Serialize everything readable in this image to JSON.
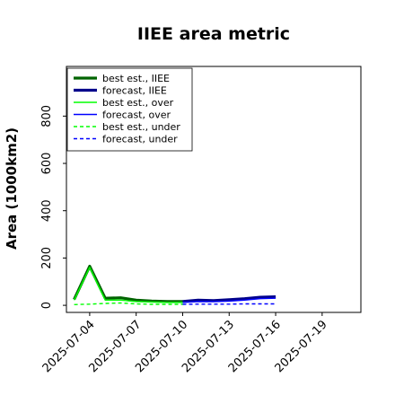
{
  "chart_data": {
    "type": "line",
    "title": "IIEE area metric",
    "xlabel": "",
    "ylabel": "Area (1000km2)",
    "xlim": [
      "2025-07-02T12:00",
      "2025-07-21T12:00"
    ],
    "ylim": [
      -30,
      1010
    ],
    "yticks": [
      0,
      200,
      400,
      600,
      800
    ],
    "xticks": [
      "2025-07-04",
      "2025-07-07",
      "2025-07-10",
      "2025-07-13",
      "2025-07-16",
      "2025-07-19"
    ],
    "xtick_colors": [
      "#000000",
      "#000000",
      "#228b22",
      "#000000",
      "#000000",
      "#000000"
    ],
    "grid": false,
    "legend_position": "top-left",
    "series": [
      {
        "name": "best est., IIEE",
        "color": "#006400",
        "style": "solid",
        "weight": "thick",
        "x": [
          "2025-07-03",
          "2025-07-04",
          "2025-07-05",
          "2025-07-06",
          "2025-07-07",
          "2025-07-08",
          "2025-07-09",
          "2025-07-10"
        ],
        "y": [
          25,
          165,
          30,
          32,
          22,
          18,
          16,
          16
        ]
      },
      {
        "name": "forecast, IIEE",
        "color": "#00008b",
        "style": "solid",
        "weight": "thick",
        "x": [
          "2025-07-10",
          "2025-07-11",
          "2025-07-12",
          "2025-07-13",
          "2025-07-14",
          "2025-07-15",
          "2025-07-16"
        ],
        "y": [
          16,
          22,
          20,
          24,
          28,
          34,
          36
        ]
      },
      {
        "name": "best est., over",
        "color": "#00ff00",
        "style": "solid",
        "weight": "thin",
        "x": [
          "2025-07-03",
          "2025-07-04",
          "2025-07-05",
          "2025-07-06",
          "2025-07-07",
          "2025-07-08",
          "2025-07-09",
          "2025-07-10"
        ],
        "y": [
          22,
          160,
          22,
          22,
          16,
          14,
          12,
          12
        ]
      },
      {
        "name": "forecast, over",
        "color": "#0000ff",
        "style": "solid",
        "weight": "thin",
        "x": [
          "2025-07-10",
          "2025-07-11",
          "2025-07-12",
          "2025-07-13",
          "2025-07-14",
          "2025-07-15",
          "2025-07-16"
        ],
        "y": [
          12,
          16,
          15,
          18,
          22,
          28,
          30
        ]
      },
      {
        "name": "best est., under",
        "color": "#00ff00",
        "style": "dashed",
        "weight": "thin",
        "x": [
          "2025-07-03",
          "2025-07-04",
          "2025-07-05",
          "2025-07-06",
          "2025-07-07",
          "2025-07-08",
          "2025-07-09",
          "2025-07-10"
        ],
        "y": [
          3,
          5,
          8,
          10,
          6,
          4,
          4,
          4
        ]
      },
      {
        "name": "forecast, under",
        "color": "#0000ff",
        "style": "dashed",
        "weight": "thin",
        "x": [
          "2025-07-10",
          "2025-07-11",
          "2025-07-12",
          "2025-07-13",
          "2025-07-14",
          "2025-07-15",
          "2025-07-16"
        ],
        "y": [
          4,
          5,
          5,
          5,
          6,
          6,
          6
        ]
      }
    ]
  }
}
